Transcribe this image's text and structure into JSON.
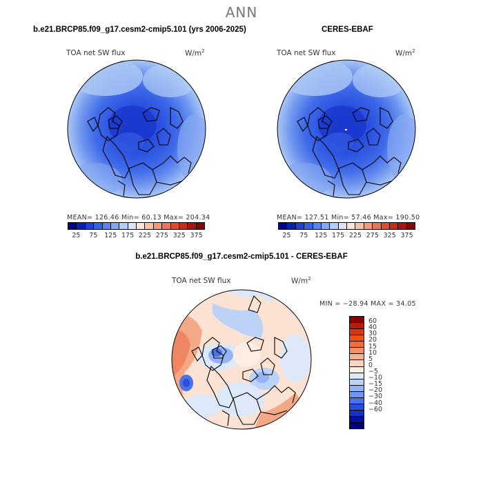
{
  "title": "ANN",
  "panels": [
    {
      "title": "b.e21.BRCP85.f09_g17.cesm2-cmip5.101 (yrs 2006-2025)",
      "variable": "TOA net SW flux",
      "units_base": "W/m",
      "units_exp": "2",
      "stats": "MEAN= 126.46   Min=  60.13   Max= 204.34"
    },
    {
      "title": "CERES-EBAF",
      "variable": "TOA net SW flux",
      "units_base": "W/m",
      "units_exp": "2",
      "stats": "MEAN= 127.51   Min=  57.46   Max= 190.50"
    },
    {
      "title": "b.e21.BRCP85.f09_g17.cesm2-cmip5.101 - CERES-EBAF",
      "variable": "TOA net SW flux",
      "units_base": "W/m",
      "units_exp": "2",
      "stats": "MIN = −28.94  MAX =  34.05"
    }
  ],
  "abs_colorbar": {
    "colors": [
      "#00008b",
      "#0a1fb4",
      "#1e3fd8",
      "#3561e6",
      "#5a84ee",
      "#86a8f2",
      "#b4cdf7",
      "#dbe6fb",
      "#fbe5d8",
      "#f6c2a8",
      "#f29c7c",
      "#ec7457",
      "#e04b34",
      "#cb2a1a",
      "#a81410",
      "#7e0a08"
    ],
    "ticks": [
      "25",
      "75",
      "125",
      "175",
      "225",
      "275",
      "325",
      "375"
    ]
  },
  "diff_colorbar": {
    "colors": [
      "#8b0000",
      "#b81a0c",
      "#d8360f",
      "#ec4f18",
      "#f46c3a",
      "#f68f66",
      "#f6b394",
      "#f8d5c0",
      "#fdeee3",
      "#dde8f9",
      "#bcd2f6",
      "#93b3f2",
      "#6f95ee",
      "#4a72e8",
      "#2a4fdc",
      "#1630c0",
      "#00139c",
      "#000080"
    ],
    "ticks": [
      "60",
      "40",
      "30",
      "20",
      "15",
      "10",
      "5",
      "0",
      "−5",
      "−10",
      "−15",
      "−20",
      "−30",
      "−40",
      "−60"
    ]
  }
}
